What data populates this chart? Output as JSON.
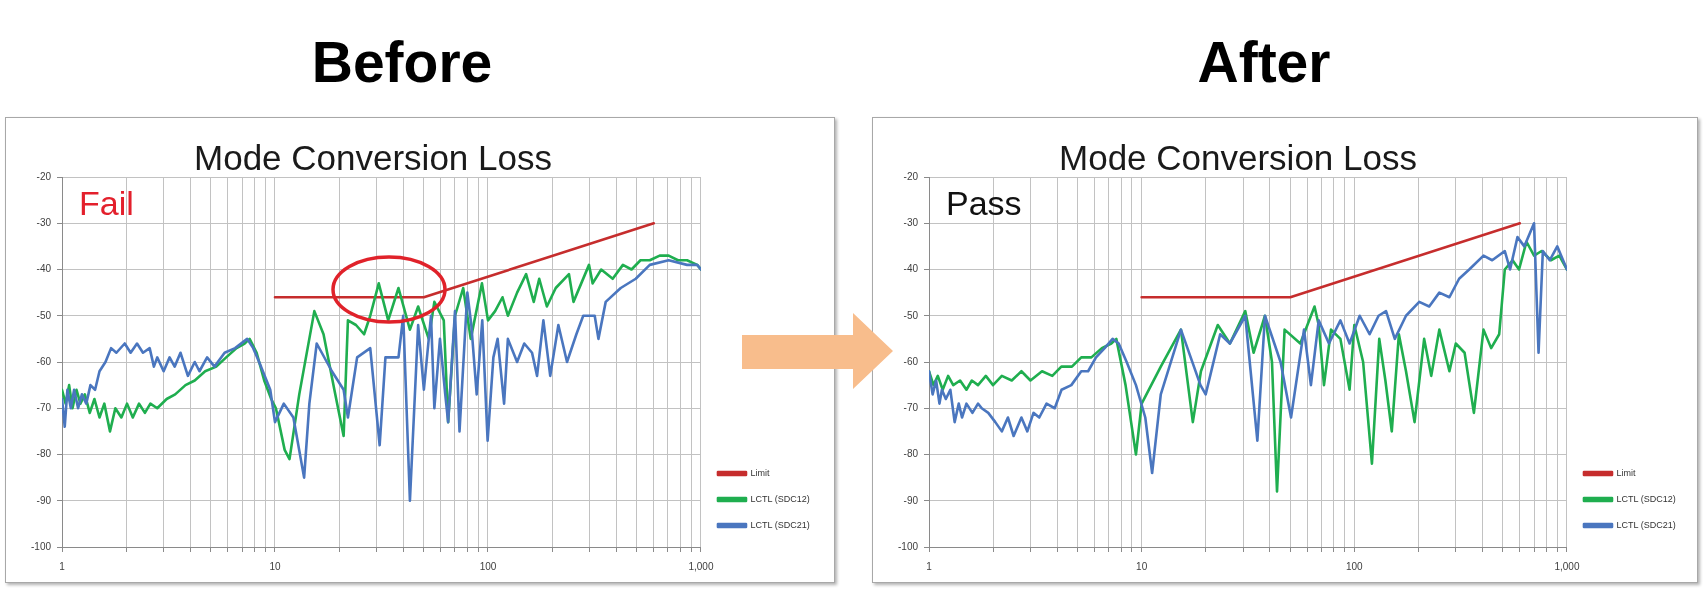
{
  "chart_data": [
    {
      "type": "line",
      "title": "Before",
      "subtitle": "Mode Conversion Loss",
      "annotations": [
        "Fail"
      ],
      "log": "x",
      "grid": true,
      "legend": "right",
      "marker": "none",
      "xlim": [
        1,
        1000
      ],
      "xticks": [
        1,
        {
          "value": 2,
          "label": null
        },
        {
          "value": 3,
          "label": null
        },
        {
          "value": 4,
          "label": null
        },
        {
          "value": 5,
          "label": null
        },
        {
          "value": 6,
          "label": null
        },
        {
          "value": 7,
          "label": null
        },
        {
          "value": 8,
          "label": null
        },
        {
          "value": 9,
          "label": null
        },
        10,
        {
          "value": 20,
          "label": null
        },
        {
          "value": 30,
          "label": null
        },
        {
          "value": 40,
          "label": null
        },
        {
          "value": 50,
          "label": null
        },
        {
          "value": 60,
          "label": null
        },
        {
          "value": 70,
          "label": null
        },
        {
          "value": 80,
          "label": null
        },
        {
          "value": 90,
          "label": null
        },
        100,
        {
          "value": 200,
          "label": null
        },
        {
          "value": 300,
          "label": null
        },
        {
          "value": 400,
          "label": null
        },
        {
          "value": 500,
          "label": null
        },
        {
          "value": 600,
          "label": null
        },
        {
          "value": 700,
          "label": null
        },
        {
          "value": 800,
          "label": null
        },
        {
          "value": 900,
          "label": null
        },
        {
          "value": 1000,
          "label": "1,000"
        }
      ],
      "ylim": [
        -100,
        -20
      ],
      "yticks": [
        -100,
        -90,
        -80,
        -70,
        -60,
        -50,
        -40,
        -30,
        -20
      ],
      "series": [
        {
          "name": "Limit",
          "color": "#c62d2d",
          "x": [
            10,
            50,
            600
          ],
          "values": [
            -46,
            -46,
            -30
          ]
        },
        {
          "name": "LCTL (SDC12)",
          "color": "#1fae4f",
          "x": [
            1,
            1.04,
            1.08,
            1.12,
            1.17,
            1.22,
            1.28,
            1.35,
            1.42,
            1.5,
            1.58,
            1.68,
            1.78,
            1.9,
            2.02,
            2.15,
            2.3,
            2.45,
            2.6,
            2.8,
            3.1,
            3.4,
            3.8,
            4.2,
            4.7,
            5.3,
            5.9,
            6.6,
            7.2,
            7.6,
            8.2,
            8.9,
            9.6,
            10.1,
            11.1,
            11.7,
            13,
            15.3,
            16.9,
            19,
            21,
            22,
            24,
            26.2,
            28,
            30.7,
            34,
            38,
            43,
            47,
            52.7,
            56,
            62,
            65,
            70,
            76.5,
            83,
            93.7,
            100,
            108,
            117,
            124,
            137,
            151,
            164,
            174,
            189,
            208,
            240,
            252,
            298,
            310,
            340,
            385,
            430,
            472,
            520,
            575,
            640,
            705,
            780,
            860,
            960,
            1000
          ],
          "values": [
            -66,
            -69,
            -65,
            -70,
            -66,
            -69,
            -67,
            -71,
            -68,
            -72,
            -69,
            -75,
            -70,
            -72,
            -69,
            -72,
            -69,
            -71,
            -69,
            -70,
            -68,
            -67,
            -65,
            -64,
            -62,
            -61,
            -59,
            -57,
            -56,
            -55,
            -58,
            -64,
            -68,
            -70,
            -79,
            -81,
            -67,
            -49,
            -54,
            -66,
            -76,
            -51,
            -52,
            -54,
            -50,
            -43,
            -51,
            -44,
            -53,
            -48,
            -55,
            -47,
            -51,
            -73,
            -50,
            -44,
            -55,
            -43,
            -51,
            -49,
            -46,
            -50,
            -45,
            -41,
            -47,
            -42,
            -48,
            -44,
            -41,
            -47,
            -39,
            -43,
            -40,
            -42,
            -39,
            -40,
            -38,
            -38,
            -37,
            -37,
            -38,
            -38,
            -39,
            -40
          ]
        },
        {
          "name": "LCTL (SDC21)",
          "color": "#4a76bf",
          "x": [
            1,
            1.03,
            1.06,
            1.1,
            1.14,
            1.19,
            1.24,
            1.3,
            1.36,
            1.43,
            1.5,
            1.6,
            1.7,
            1.8,
            1.97,
            2.1,
            2.25,
            2.4,
            2.58,
            2.7,
            2.8,
            3,
            3.2,
            3.38,
            3.6,
            3.9,
            4.2,
            4.42,
            4.8,
            5.2,
            5.8,
            6.5,
            7.4,
            7.9,
            8.6,
            9.5,
            10,
            11,
            12.2,
            13.7,
            14.5,
            15.7,
            18.5,
            21,
            22,
            24.3,
            28,
            31,
            33,
            38,
            40,
            43,
            47,
            50,
            54,
            56,
            59.5,
            63,
            65,
            70,
            73.5,
            80,
            83.5,
            88.5,
            94,
            99.6,
            106,
            111,
            119,
            124,
            137,
            148,
            161,
            170,
            182,
            196,
            214,
            235,
            260,
            280,
            317,
            330,
            357,
            420,
            494,
            575,
            705,
            860,
            960,
            1000
          ],
          "values": [
            -68,
            -74,
            -66,
            -70,
            -66,
            -70,
            -67,
            -69,
            -65,
            -66,
            -62,
            -60,
            -57,
            -58,
            -56,
            -58,
            -56,
            -58,
            -57,
            -61,
            -59,
            -62,
            -59,
            -61,
            -58,
            -63,
            -60,
            -62,
            -59,
            -61,
            -58,
            -57,
            -55,
            -57,
            -61,
            -66,
            -73,
            -69,
            -72,
            -85,
            -69,
            -56,
            -62,
            -66,
            -72,
            -59,
            -57,
            -78,
            -59,
            -59,
            -50,
            -90,
            -52,
            -66,
            -50,
            -70,
            -55,
            -67,
            -73,
            -49,
            -75,
            -45,
            -52,
            -67,
            -51,
            -77,
            -59,
            -55,
            -69,
            -55,
            -60,
            -56,
            -58,
            -63,
            -51,
            -63,
            -52,
            -60,
            -54,
            -50,
            -50,
            -55,
            -47,
            -44,
            -42,
            -39,
            -38,
            -39,
            -39,
            -40
          ]
        }
      ]
    },
    {
      "type": "line",
      "title": "After",
      "subtitle": "Mode Conversion Loss",
      "annotations": [
        "Pass"
      ],
      "log": "x",
      "grid": true,
      "legend": "right",
      "marker": "none",
      "xlim": [
        1,
        1000
      ],
      "xticks": [
        1,
        {
          "value": 2,
          "label": null
        },
        {
          "value": 3,
          "label": null
        },
        {
          "value": 4,
          "label": null
        },
        {
          "value": 5,
          "label": null
        },
        {
          "value": 6,
          "label": null
        },
        {
          "value": 7,
          "label": null
        },
        {
          "value": 8,
          "label": null
        },
        {
          "value": 9,
          "label": null
        },
        10,
        {
          "value": 20,
          "label": null
        },
        {
          "value": 30,
          "label": null
        },
        {
          "value": 40,
          "label": null
        },
        {
          "value": 50,
          "label": null
        },
        {
          "value": 60,
          "label": null
        },
        {
          "value": 70,
          "label": null
        },
        {
          "value": 80,
          "label": null
        },
        {
          "value": 90,
          "label": null
        },
        100,
        {
          "value": 200,
          "label": null
        },
        {
          "value": 300,
          "label": null
        },
        {
          "value": 400,
          "label": null
        },
        {
          "value": 500,
          "label": null
        },
        {
          "value": 600,
          "label": null
        },
        {
          "value": 700,
          "label": null
        },
        {
          "value": 800,
          "label": null
        },
        {
          "value": 900,
          "label": null
        },
        {
          "value": 1000,
          "label": "1,000"
        }
      ],
      "ylim": [
        -100,
        -20
      ],
      "yticks": [
        -100,
        -90,
        -80,
        -70,
        -60,
        -50,
        -40,
        -30,
        -20
      ],
      "series": [
        {
          "name": "Limit",
          "color": "#c62d2d",
          "x": [
            10,
            50,
            600
          ],
          "values": [
            -46,
            -46,
            -30
          ]
        },
        {
          "name": "LCTL (SDC12)",
          "color": "#1fae4f",
          "x": [
            1,
            1.05,
            1.1,
            1.16,
            1.23,
            1.3,
            1.4,
            1.5,
            1.59,
            1.7,
            1.85,
            2,
            2.2,
            2.45,
            2.72,
            3,
            3.4,
            3.8,
            4.19,
            4.7,
            5.2,
            5.8,
            6.5,
            7.2,
            7.6,
            8.4,
            9.4,
            10,
            12.3,
            15.3,
            17.4,
            19,
            22.8,
            26,
            30.7,
            33.6,
            38,
            41,
            43.3,
            47,
            55.7,
            65,
            68,
            72,
            77.7,
            86,
            95,
            100,
            110,
            121,
            131,
            140,
            150,
            162,
            175,
            192,
            213,
            230,
            251,
            280,
            300,
            330,
            365,
            405,
            440,
            480,
            510,
            555,
            595,
            645,
            700,
            760,
            840,
            920,
            1000
          ],
          "values": [
            -62,
            -65,
            -63,
            -66,
            -63,
            -65,
            -64,
            -66,
            -64,
            -65,
            -63,
            -65,
            -63,
            -64,
            -62,
            -64,
            -62,
            -63,
            -61,
            -61,
            -59,
            -59,
            -57,
            -56,
            -55,
            -65,
            -80,
            -69,
            -61,
            -53,
            -73,
            -62,
            -52,
            -56,
            -49,
            -58,
            -50,
            -60,
            -88,
            -53,
            -56,
            -48,
            -52,
            -65,
            -53,
            -55,
            -66,
            -52,
            -60,
            -82,
            -55,
            -64,
            -75,
            -54,
            -62,
            -73,
            -55,
            -63,
            -53,
            -62,
            -56,
            -58,
            -71,
            -53,
            -57,
            -54,
            -40,
            -38,
            -40,
            -34,
            -37,
            -36,
            -38,
            -37,
            -40
          ]
        },
        {
          "name": "LCTL (SDC21)",
          "color": "#4a76bf",
          "x": [
            1,
            1.04,
            1.08,
            1.12,
            1.15,
            1.2,
            1.26,
            1.32,
            1.38,
            1.43,
            1.5,
            1.6,
            1.7,
            1.77,
            1.9,
            2.05,
            2.2,
            2.35,
            2.5,
            2.72,
            2.9,
            3.1,
            3.3,
            3.57,
            3.9,
            4.2,
            4.67,
            5.2,
            5.6,
            6.1,
            6.7,
            7.3,
            7.8,
            8.5,
            9.4,
            10.4,
            11.2,
            12.3,
            15.3,
            18.9,
            20,
            23.4,
            26,
            30.7,
            35,
            38,
            45,
            50.4,
            58,
            62.5,
            68,
            76,
            86,
            95,
            106,
            118,
            130,
            141,
            155,
            175,
            202,
            225,
            251,
            280,
            311,
            347,
            405,
            445,
            510,
            540,
            585,
            630,
            700,
            735,
            770,
            830,
            900,
            1000
          ],
          "values": [
            -62,
            -67,
            -64,
            -69,
            -66,
            -68,
            -66,
            -73,
            -69,
            -72,
            -69,
            -71,
            -69,
            -70,
            -71,
            -73,
            -75,
            -72,
            -76,
            -72,
            -75,
            -71,
            -72,
            -69,
            -70,
            -66,
            -65,
            -62,
            -62,
            -59,
            -57,
            -55,
            -56,
            -60,
            -65,
            -72,
            -84,
            -67,
            -53,
            -65,
            -67,
            -54,
            -56,
            -50,
            -77,
            -50,
            -60,
            -72,
            -53,
            -65,
            -51,
            -56,
            -51,
            -56,
            -50,
            -54,
            -50,
            -49,
            -55,
            -50,
            -47,
            -48,
            -45,
            -46,
            -42,
            -40,
            -37,
            -38,
            -36,
            -40,
            -33,
            -35,
            -30,
            -58,
            -36,
            -38,
            -35,
            -40
          ]
        }
      ]
    }
  ]
}
